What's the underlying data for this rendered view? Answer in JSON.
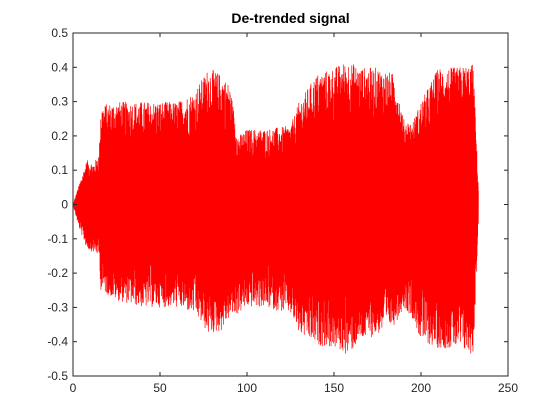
{
  "chart_data": {
    "type": "line",
    "title": "De-trended signal",
    "xlabel": "",
    "ylabel": "",
    "xlim": [
      0,
      250
    ],
    "ylim": [
      -0.5,
      0.5
    ],
    "xticks": [
      0,
      50,
      100,
      150,
      200,
      250
    ],
    "yticks": [
      -0.5,
      -0.4,
      -0.3,
      -0.2,
      -0.1,
      0,
      0.1,
      0.2,
      0.3,
      0.4,
      0.5
    ],
    "grid": false,
    "series": [
      {
        "color": "#ff0000",
        "description_points": {
          "x": [
            0,
            3,
            8,
            12,
            15,
            16,
            25,
            40,
            60,
            70,
            78,
            85,
            90,
            95,
            100,
            110,
            125,
            130,
            140,
            150,
            158,
            165,
            175,
            185,
            190,
            195,
            200,
            210,
            220,
            230,
            233
          ],
          "upper": [
            0.0,
            0.05,
            0.13,
            0.12,
            0.15,
            0.29,
            0.3,
            0.3,
            0.3,
            0.33,
            0.4,
            0.38,
            0.35,
            0.2,
            0.22,
            0.22,
            0.23,
            0.3,
            0.38,
            0.4,
            0.42,
            0.4,
            0.4,
            0.38,
            0.25,
            0.24,
            0.3,
            0.4,
            0.4,
            0.41,
            0.05
          ],
          "lower": [
            0.0,
            -0.06,
            -0.13,
            -0.14,
            -0.15,
            -0.25,
            -0.28,
            -0.3,
            -0.3,
            -0.32,
            -0.38,
            -0.37,
            -0.33,
            -0.32,
            -0.3,
            -0.3,
            -0.32,
            -0.38,
            -0.41,
            -0.42,
            -0.44,
            -0.4,
            -0.38,
            -0.35,
            -0.3,
            -0.33,
            -0.4,
            -0.42,
            -0.42,
            -0.44,
            -0.05
          ]
        }
      }
    ]
  }
}
